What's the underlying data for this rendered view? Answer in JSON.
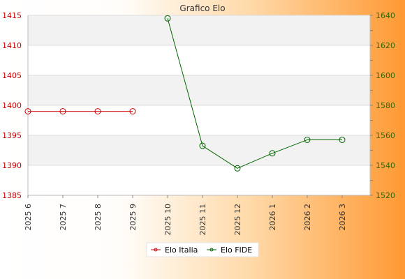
{
  "chart_data": {
    "type": "line",
    "title": "Grafico Elo",
    "categories": [
      "2025 6",
      "2025 7",
      "2025 8",
      "2025 9",
      "2025 10",
      "2025 11",
      "2025 12",
      "2026 1",
      "2026 2",
      "2026 3"
    ],
    "grid": true,
    "legend_position": "bottom-center",
    "series": [
      {
        "name": "Elo Italia",
        "axis": "left",
        "color": "#cc0000",
        "values": [
          1399,
          1399,
          1399,
          1399,
          null,
          null,
          null,
          null,
          null,
          null
        ]
      },
      {
        "name": "Elo FIDE",
        "axis": "right",
        "color": "#006600",
        "values": [
          null,
          null,
          null,
          null,
          1638,
          1553,
          1538,
          1548,
          1557,
          1557
        ]
      }
    ],
    "y_left": {
      "ticks": [
        1385,
        1390,
        1395,
        1400,
        1405,
        1410,
        1415
      ],
      "lim": [
        1385,
        1415
      ],
      "color": "#cc0000"
    },
    "y_right": {
      "ticks": [
        1520,
        1540,
        1560,
        1580,
        1600,
        1620,
        1640
      ],
      "lim": [
        1520,
        1640
      ],
      "color": "#336600"
    }
  }
}
